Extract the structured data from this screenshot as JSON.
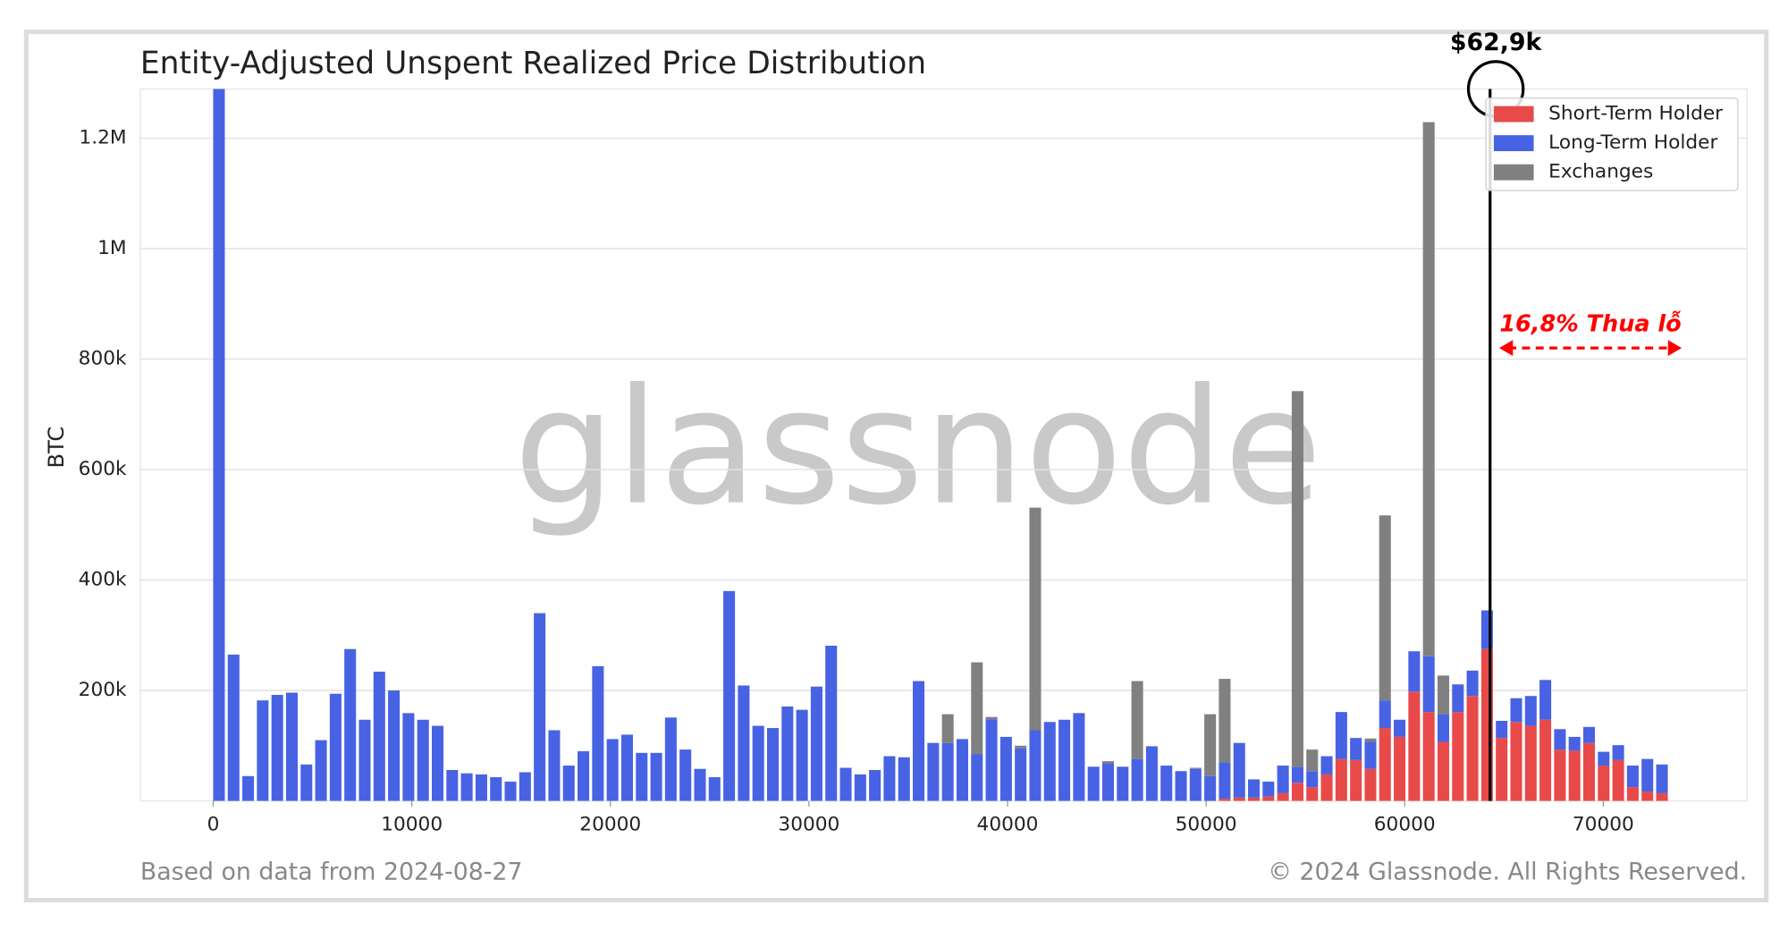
{
  "chart_data": {
    "type": "stacked_bar",
    "title": "Entity-Adjusted Unspent Realized Price Distribution",
    "ylabel": "BTC",
    "watermark": "glassnode",
    "footer_left": "Based on data from 2024-08-27",
    "footer_right": "© 2024 Glassnode. All Rights Reserved.",
    "price_line": {
      "label": "$62,9k",
      "x": 64300
    },
    "loss_annotation": "16,8% Thua lỗ",
    "legend": "upper right",
    "xlim": [
      -3675,
      77235
    ],
    "ylim": [
      0,
      1289000
    ],
    "xticks": [
      0,
      10000,
      20000,
      30000,
      40000,
      50000,
      60000,
      70000
    ],
    "yticks": [
      {
        "value": 200000,
        "label": "200k"
      },
      {
        "value": 400000,
        "label": "400k"
      },
      {
        "value": 600000,
        "label": "600k"
      },
      {
        "value": 800000,
        "label": "800k"
      },
      {
        "value": 1000000,
        "label": "1M"
      },
      {
        "value": 1200000,
        "label": "1.2M"
      }
    ],
    "grid": true,
    "x": [
      290,
      1024,
      1758,
      2492,
      3226,
      3960,
      4694,
      5428,
      6162,
      6896,
      7630,
      8364,
      9098,
      9832,
      10566,
      11300,
      12034,
      12768,
      13502,
      14236,
      14970,
      15704,
      16438,
      17172,
      17906,
      18640,
      19374,
      20108,
      20842,
      21576,
      22310,
      23044,
      23778,
      24512,
      25246,
      25980,
      26714,
      27448,
      28182,
      28916,
      29650,
      30384,
      31118,
      31852,
      32586,
      33320,
      34054,
      34788,
      35522,
      36256,
      36990,
      37724,
      38458,
      39192,
      39926,
      40660,
      41394,
      42128,
      42862,
      43596,
      44330,
      45064,
      45798,
      46532,
      47266,
      48000,
      48734,
      49468,
      50202,
      50936,
      51670,
      52404,
      53138,
      53872,
      54606,
      55340,
      56074,
      56808,
      57542,
      58276,
      59010,
      59744,
      60478,
      61212,
      61946,
      62680,
      63414,
      64148,
      64882,
      65616,
      66350,
      67084,
      67818,
      68552,
      69286,
      70020,
      70754,
      71488,
      72222,
      72956
    ],
    "series": [
      {
        "name": "Short-Term Holder",
        "color": "#e84a4a",
        "values": [
          0,
          0,
          0,
          0,
          0,
          0,
          0,
          0,
          0,
          0,
          0,
          0,
          0,
          0,
          0,
          0,
          0,
          0,
          0,
          0,
          0,
          0,
          0,
          0,
          0,
          0,
          0,
          0,
          0,
          0,
          0,
          0,
          0,
          0,
          0,
          0,
          0,
          0,
          0,
          0,
          0,
          0,
          0,
          0,
          0,
          0,
          0,
          0,
          0,
          0,
          0,
          0,
          0,
          0,
          0,
          0,
          0,
          0,
          0,
          0,
          0,
          0,
          0,
          0,
          0,
          0,
          0,
          0,
          0,
          4000,
          6000,
          6000,
          8000,
          14000,
          33000,
          25000,
          48000,
          76000,
          74000,
          58000,
          132000,
          116000,
          198000,
          161000,
          107000,
          161000,
          190000,
          275000,
          114000,
          143000,
          136000,
          147000,
          93000,
          91000,
          105000,
          64000,
          74000,
          25000,
          17000,
          14000
        ]
      },
      {
        "name": "Long-Term Holder",
        "color": "#4763e4",
        "values": [
          1300000,
          265000,
          45000,
          182000,
          192000,
          196000,
          66000,
          110000,
          194000,
          275000,
          147000,
          234000,
          200000,
          159000,
          147000,
          136000,
          56000,
          50000,
          48000,
          43000,
          35000,
          52000,
          340000,
          128000,
          64000,
          90000,
          244000,
          112000,
          120000,
          87000,
          87000,
          151000,
          93000,
          58000,
          43000,
          380000,
          209000,
          136000,
          132000,
          171000,
          165000,
          207000,
          281000,
          60000,
          48000,
          56000,
          81000,
          79000,
          217000,
          105000,
          105000,
          112000,
          85000,
          148000,
          116000,
          95000,
          128000,
          143000,
          147000,
          159000,
          62000,
          68000,
          62000,
          76000,
          99000,
          64000,
          54000,
          58000,
          45000,
          66000,
          99000,
          33000,
          27000,
          50000,
          29000,
          29000,
          33000,
          85000,
          40000,
          49000,
          50000,
          31000,
          73000,
          101000,
          50000,
          50000,
          46000,
          70000,
          31000,
          43000,
          54000,
          72000,
          37000,
          25000,
          29000,
          25000,
          27000,
          39000,
          59000,
          52000
        ]
      },
      {
        "name": "Exchanges",
        "color": "#808080",
        "values": [
          0,
          0,
          0,
          0,
          0,
          0,
          0,
          0,
          0,
          0,
          0,
          0,
          0,
          0,
          0,
          0,
          0,
          0,
          0,
          0,
          0,
          0,
          0,
          0,
          0,
          0,
          0,
          0,
          0,
          0,
          0,
          0,
          0,
          0,
          0,
          0,
          0,
          0,
          0,
          0,
          0,
          0,
          0,
          0,
          0,
          0,
          0,
          0,
          0,
          0,
          52000,
          0,
          166000,
          4000,
          0,
          5000,
          403000,
          0,
          0,
          0,
          0,
          4000,
          0,
          141000,
          0,
          0,
          0,
          2000,
          112000,
          151000,
          0,
          0,
          0,
          0,
          680000,
          39000,
          0,
          0,
          0,
          6000,
          335000,
          0,
          0,
          967000,
          70000,
          0,
          0,
          0,
          0,
          0,
          0,
          0,
          0,
          0,
          0,
          0,
          0,
          0,
          0,
          0
        ]
      }
    ]
  }
}
